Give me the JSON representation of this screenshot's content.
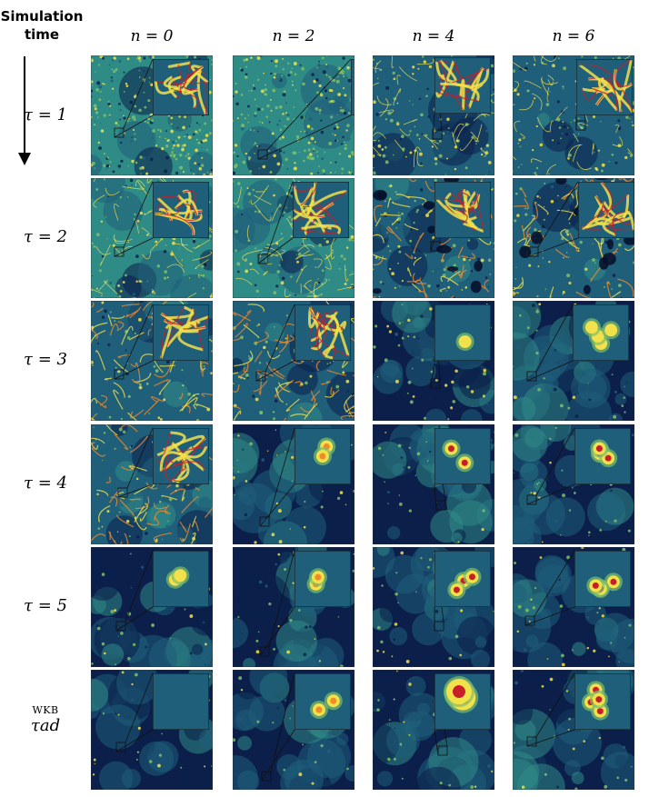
{
  "header": {
    "line1": "Simulation",
    "line2": "time"
  },
  "columns": [
    {
      "n": "n = 0"
    },
    {
      "n": "n = 2"
    },
    {
      "n": "n = 4"
    },
    {
      "n": "n = 6"
    }
  ],
  "rows": [
    {
      "tau": "τ = 1"
    },
    {
      "tau": "τ = 2"
    },
    {
      "tau": "τ = 3"
    },
    {
      "tau": "τ = 4"
    },
    {
      "tau": "τ = 5"
    }
  ],
  "last_row": {
    "prefix": "WKB",
    "tau": "τad"
  },
  "colors": {
    "deep": "#0b1f4a",
    "teal": "#1f5f7a",
    "mid": "#2f8b86",
    "green": "#7fbf6a",
    "yellow": "#f2e14a",
    "orange": "#f08a2a",
    "red": "#c81e2a",
    "dark_red": "#6a0a1e"
  }
}
